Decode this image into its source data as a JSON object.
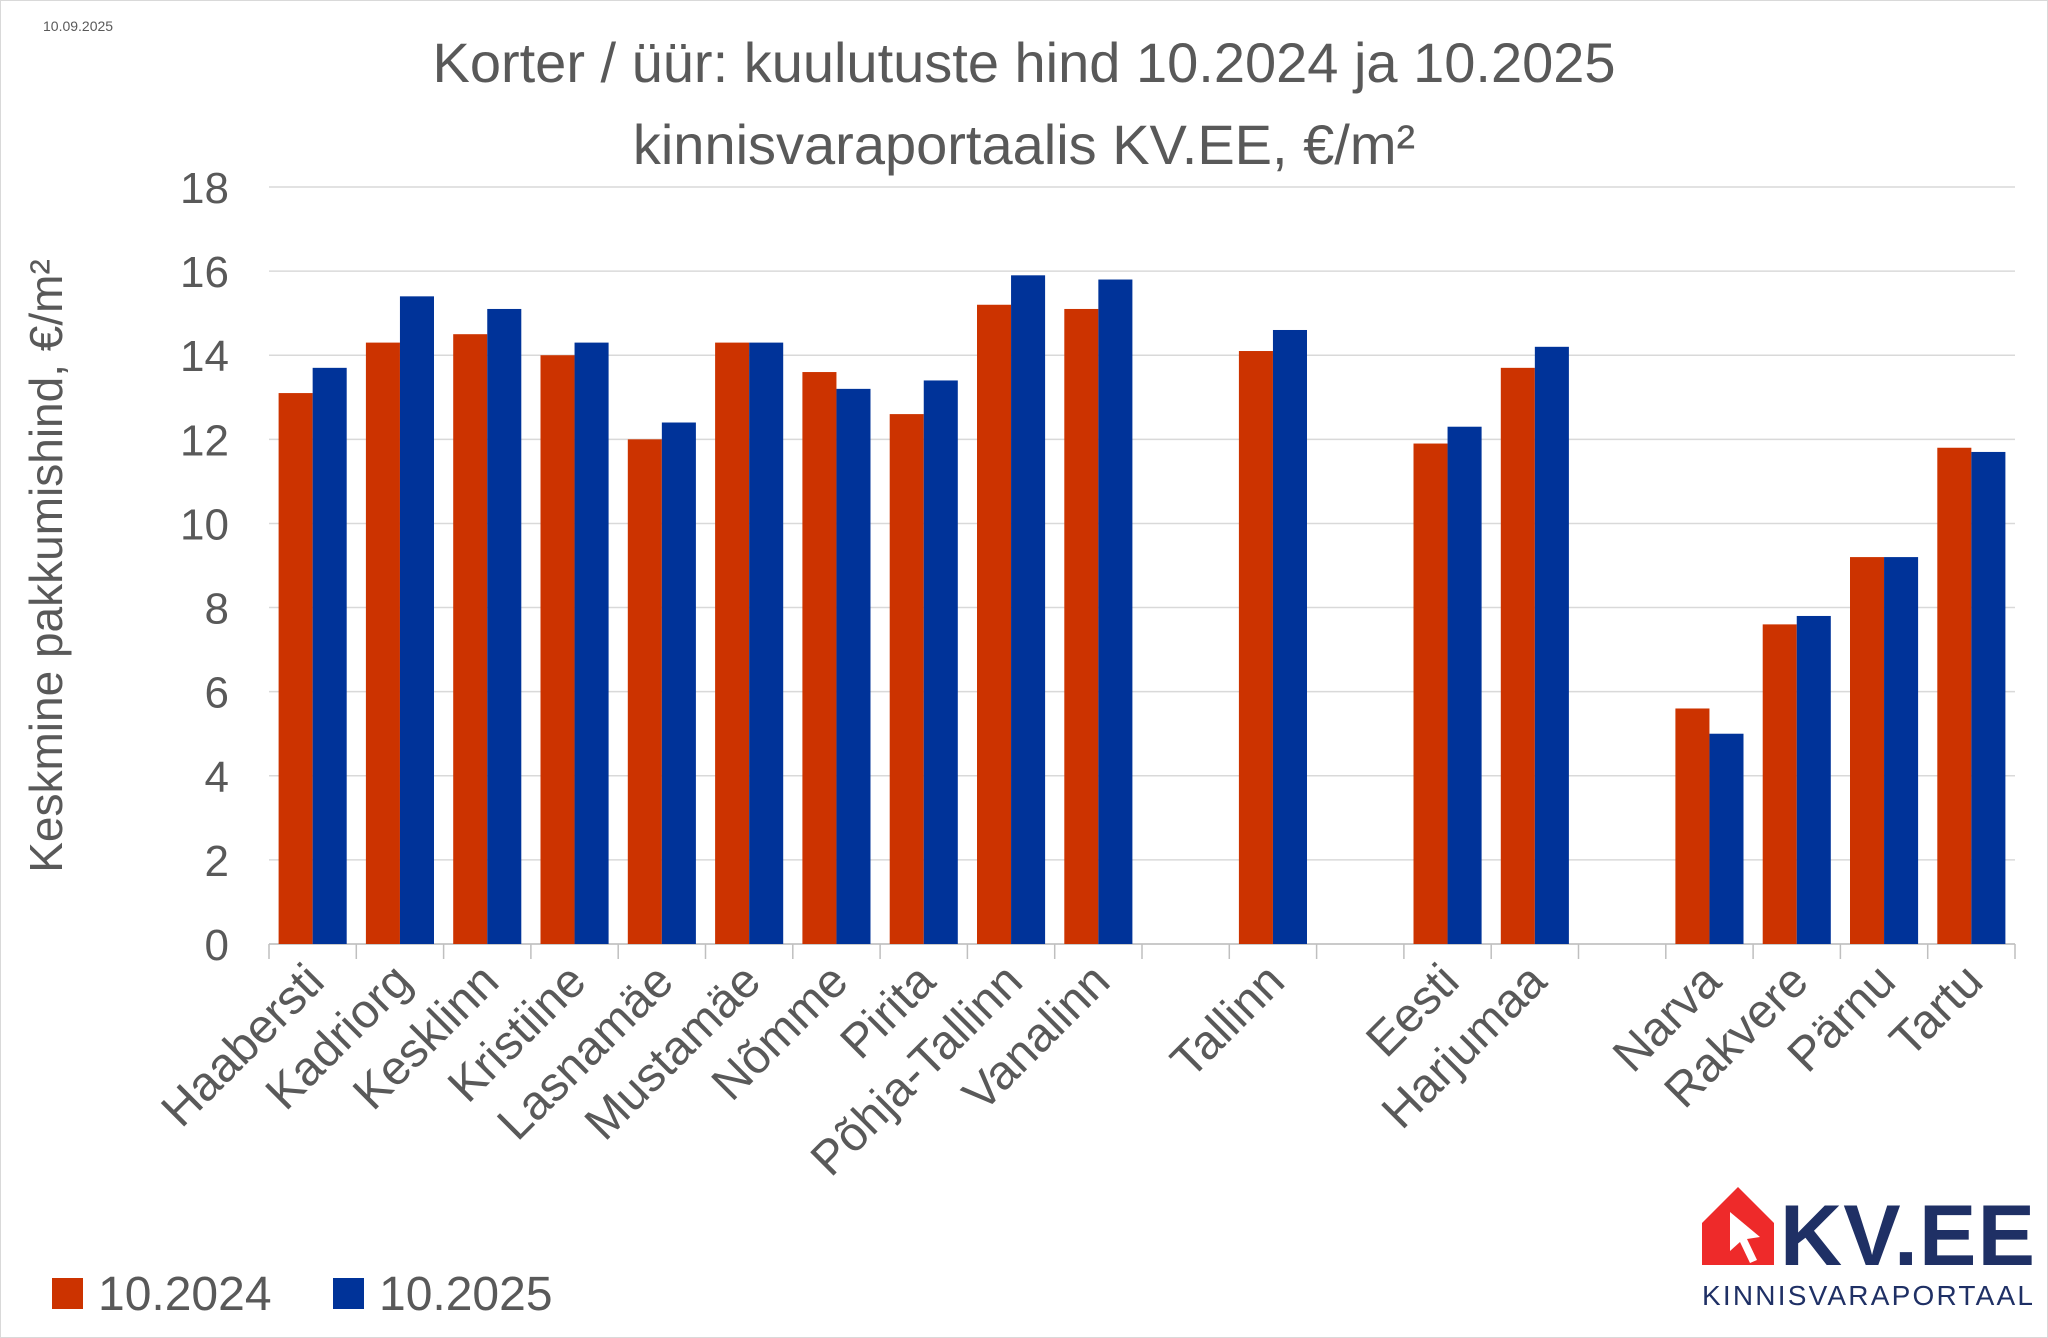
{
  "date_stamp": "10.09.2025",
  "chart_data": {
    "type": "bar",
    "title": [
      "Korter / üür: kuulutuste hind 10.2024 ja 10.2025",
      "kinnisvaraportaalis KV.EE, €/m²"
    ],
    "ylabel": "Keskmine pakkumishind, €/m²",
    "xlabel": "",
    "ylim": [
      0,
      18
    ],
    "yticks": [
      0,
      2,
      4,
      6,
      8,
      10,
      12,
      14,
      16,
      18
    ],
    "grid": true,
    "legend_position": "bottom-left",
    "categories": [
      "Haabersti",
      "Kadriorg",
      "Kesklinn",
      "Kristiine",
      "Lasnamäe",
      "Mustamäe",
      "Nõmme",
      "Pirita",
      "Põhja-Tallinn",
      "Vanalinn",
      "",
      "Tallinn",
      "",
      "Eesti",
      "Harjumaa",
      "",
      "Narva",
      "Rakvere",
      "Pärnu",
      "Tartu"
    ],
    "series": [
      {
        "name": "10.2024",
        "color": "#CC3300",
        "values": [
          13.1,
          14.3,
          14.5,
          14.0,
          12.0,
          14.3,
          13.6,
          12.6,
          15.2,
          15.1,
          null,
          14.1,
          null,
          11.9,
          13.7,
          null,
          5.6,
          7.6,
          9.2,
          11.8
        ]
      },
      {
        "name": "10.2025",
        "color": "#003399",
        "values": [
          13.7,
          15.4,
          15.1,
          14.3,
          12.4,
          14.3,
          13.2,
          13.4,
          15.9,
          15.8,
          null,
          14.6,
          null,
          12.3,
          14.2,
          null,
          5.0,
          7.8,
          9.2,
          11.7
        ]
      }
    ]
  },
  "logo": {
    "brand": "KV.EE",
    "tagline": "KINNISVARAPORTAAL",
    "red": "#EE2A2A",
    "navy": "#1F3065"
  }
}
